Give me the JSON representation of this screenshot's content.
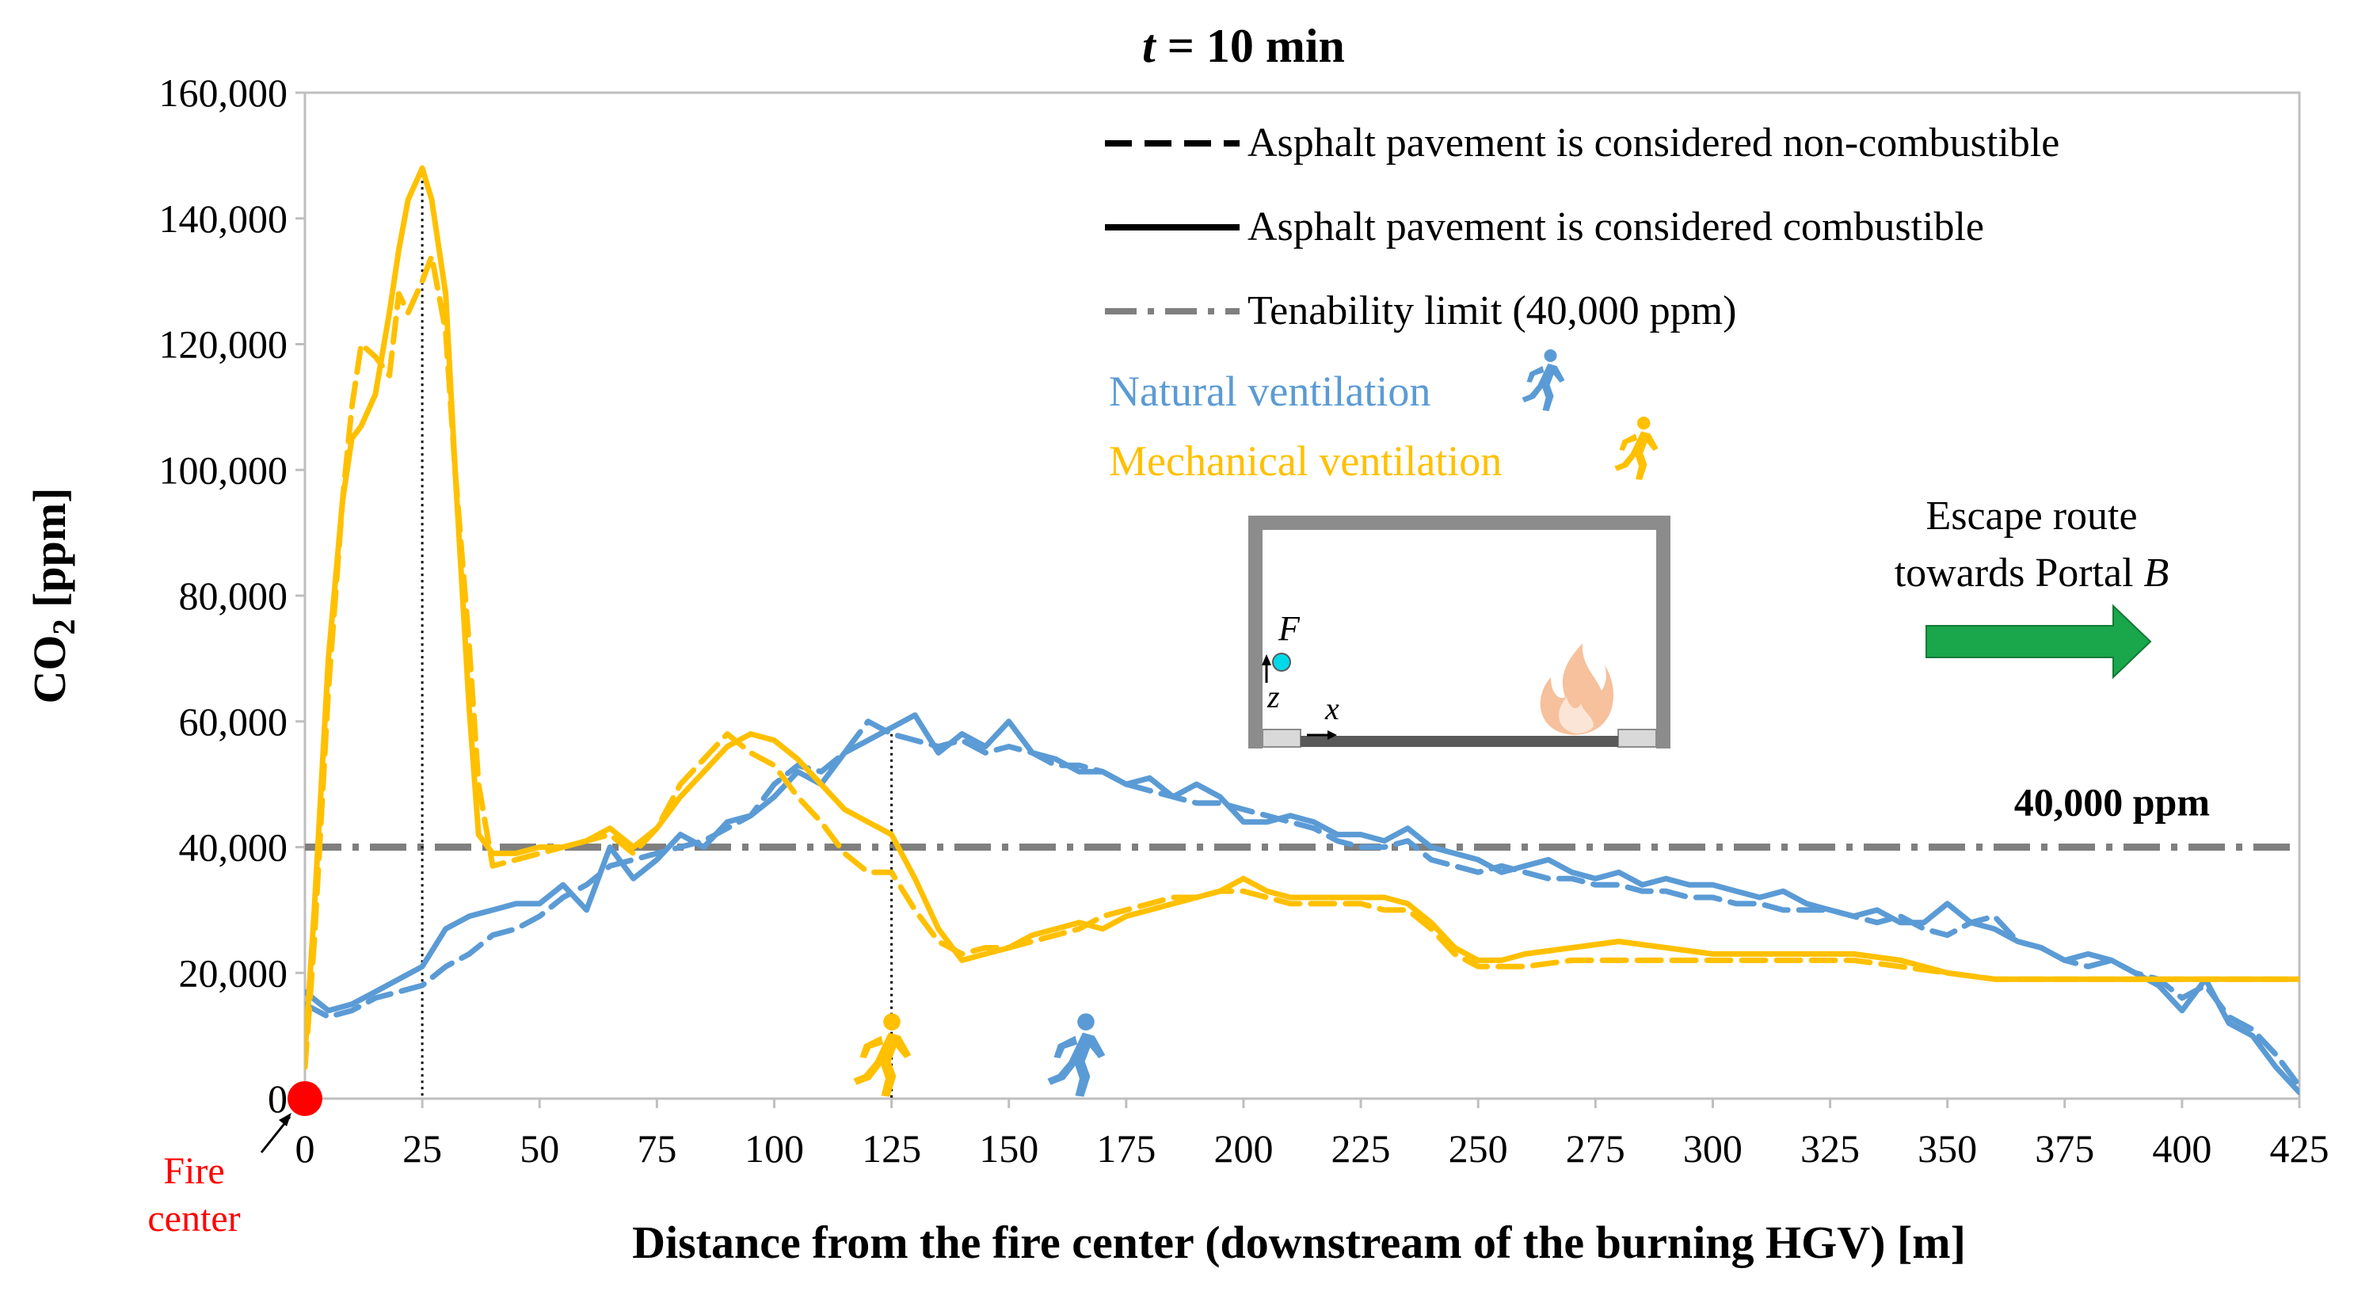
{
  "title_prefix": "t",
  "title_suffix": " = 10 min",
  "colors": {
    "natural": "#5b9bd5",
    "mechanical": "#ffc000",
    "tenability": "#7f7f7f",
    "fire": "#ff0000",
    "arrow": "#1aa64b",
    "tunnel": "#8c8c8c",
    "marker": "#00d9e8"
  },
  "chart_data": {
    "type": "line",
    "title": "t = 10 min",
    "xlabel": "Distance from the fire center (downstream of the burning HGV) [m]",
    "ylabel_main": "CO",
    "ylabel_sub": "2",
    "ylabel_suffix": " [ppm]",
    "xlim": [
      0,
      425
    ],
    "ylim": [
      0,
      160000
    ],
    "xticks": [
      0,
      25,
      50,
      75,
      100,
      125,
      150,
      175,
      200,
      225,
      250,
      275,
      300,
      325,
      350,
      375,
      400,
      425
    ],
    "yticks": [
      0,
      20000,
      40000,
      60000,
      80000,
      100000,
      120000,
      140000,
      160000
    ],
    "ytick_labels": [
      "0",
      "20,000",
      "40,000",
      "60,000",
      "80,000",
      "100,000",
      "120,000",
      "140,000",
      "160,000"
    ],
    "tenability_limit": 40000,
    "tenability_label": "40,000 ppm",
    "reference_lines": [
      25,
      125
    ],
    "series": [
      {
        "name": "Natural ventilation – combustible asphalt",
        "ventilation": "natural",
        "style": "solid",
        "x": [
          0,
          5,
          10,
          15,
          20,
          25,
          30,
          35,
          40,
          45,
          50,
          55,
          60,
          65,
          70,
          75,
          80,
          85,
          90,
          95,
          100,
          105,
          110,
          115,
          120,
          125,
          130,
          135,
          140,
          145,
          150,
          155,
          160,
          165,
          170,
          175,
          180,
          185,
          190,
          195,
          200,
          205,
          210,
          215,
          220,
          225,
          230,
          235,
          240,
          245,
          250,
          255,
          260,
          265,
          270,
          275,
          280,
          285,
          290,
          295,
          300,
          305,
          310,
          315,
          320,
          325,
          330,
          335,
          340,
          345,
          350,
          355,
          360,
          365,
          370,
          375,
          380,
          385,
          390,
          395,
          400,
          405,
          410,
          415,
          420,
          425
        ],
        "y": [
          17000,
          14000,
          15000,
          17000,
          19000,
          21000,
          27000,
          29000,
          30000,
          31000,
          31000,
          34000,
          30000,
          40000,
          35000,
          38000,
          42000,
          40000,
          44000,
          45000,
          48000,
          52000,
          50000,
          55000,
          57000,
          59000,
          61000,
          55000,
          58000,
          56000,
          60000,
          55000,
          54000,
          52000,
          52000,
          50000,
          51000,
          48000,
          50000,
          48000,
          44000,
          44000,
          45000,
          44000,
          42000,
          42000,
          41000,
          43000,
          40000,
          39000,
          38000,
          36000,
          37000,
          38000,
          36000,
          35000,
          36000,
          34000,
          35000,
          34000,
          34000,
          33000,
          32000,
          33000,
          31000,
          30000,
          29000,
          30000,
          28000,
          28000,
          31000,
          28000,
          27000,
          25000,
          24000,
          22000,
          23000,
          22000,
          20000,
          18000,
          14000,
          19000,
          12000,
          10000,
          5000,
          1000
        ]
      },
      {
        "name": "Natural ventilation – non-combustible asphalt",
        "ventilation": "natural",
        "style": "dashed",
        "x": [
          0,
          5,
          10,
          15,
          20,
          25,
          30,
          35,
          40,
          45,
          50,
          55,
          60,
          65,
          70,
          75,
          80,
          85,
          90,
          95,
          100,
          105,
          110,
          115,
          120,
          125,
          130,
          135,
          140,
          145,
          150,
          155,
          160,
          165,
          170,
          175,
          180,
          185,
          190,
          195,
          200,
          205,
          210,
          215,
          220,
          225,
          230,
          235,
          240,
          245,
          250,
          255,
          260,
          265,
          270,
          275,
          280,
          285,
          290,
          295,
          300,
          305,
          310,
          315,
          320,
          325,
          330,
          335,
          340,
          345,
          350,
          355,
          360,
          365,
          370,
          375,
          380,
          385,
          390,
          395,
          400,
          405,
          410,
          415,
          420,
          425
        ],
        "y": [
          15000,
          13000,
          14000,
          16000,
          17000,
          18000,
          21000,
          23000,
          26000,
          27000,
          29000,
          32000,
          34000,
          37000,
          38000,
          39000,
          40000,
          41000,
          43000,
          45000,
          50000,
          53000,
          52000,
          55000,
          60000,
          58000,
          57000,
          56000,
          57000,
          55000,
          56000,
          55000,
          53000,
          53000,
          52000,
          50000,
          49000,
          48000,
          47000,
          47000,
          46000,
          45000,
          44000,
          43000,
          41000,
          40000,
          40000,
          41000,
          38000,
          37000,
          36000,
          37000,
          36000,
          35000,
          35000,
          34000,
          34000,
          33000,
          33000,
          32000,
          32000,
          31000,
          31000,
          30000,
          30000,
          30000,
          29000,
          28000,
          29000,
          27000,
          26000,
          28000,
          29000,
          25000,
          24000,
          22000,
          21000,
          22000,
          20000,
          19000,
          16000,
          18000,
          13000,
          11000,
          7000,
          2000
        ]
      },
      {
        "name": "Mechanical ventilation – combustible asphalt",
        "ventilation": "mechanical",
        "style": "solid",
        "x": [
          0,
          2,
          5,
          8,
          10,
          12,
          15,
          18,
          20,
          22,
          25,
          27,
          30,
          32,
          35,
          37,
          40,
          45,
          50,
          55,
          60,
          65,
          70,
          75,
          80,
          85,
          90,
          95,
          100,
          105,
          110,
          115,
          120,
          125,
          130,
          135,
          140,
          145,
          150,
          155,
          160,
          165,
          170,
          175,
          180,
          185,
          190,
          195,
          200,
          205,
          210,
          215,
          220,
          225,
          230,
          235,
          240,
          245,
          250,
          255,
          260,
          270,
          280,
          290,
          300,
          310,
          320,
          330,
          340,
          350,
          360,
          370,
          380,
          390,
          400,
          410,
          420,
          425
        ],
        "y": [
          7000,
          30000,
          70000,
          95000,
          105000,
          107000,
          112000,
          125000,
          135000,
          143000,
          148000,
          143000,
          128000,
          100000,
          62000,
          42000,
          39000,
          39000,
          40000,
          40000,
          41000,
          43000,
          40000,
          43000,
          48000,
          52000,
          56000,
          58000,
          57000,
          54000,
          50000,
          46000,
          44000,
          42000,
          35000,
          27000,
          22000,
          23000,
          24000,
          26000,
          27000,
          28000,
          27000,
          29000,
          30000,
          31000,
          32000,
          33000,
          35000,
          33000,
          32000,
          32000,
          32000,
          32000,
          32000,
          31000,
          28000,
          24000,
          22000,
          22000,
          23000,
          24000,
          25000,
          24000,
          23000,
          23000,
          23000,
          23000,
          22000,
          20000,
          19000,
          19000,
          19000,
          19000,
          19000,
          19000,
          19000,
          19000
        ]
      },
      {
        "name": "Mechanical ventilation – non-combustible asphalt",
        "ventilation": "mechanical",
        "style": "dashed",
        "x": [
          0,
          2,
          5,
          8,
          10,
          12,
          15,
          18,
          20,
          22,
          25,
          27,
          30,
          32,
          35,
          37,
          40,
          45,
          50,
          55,
          60,
          65,
          70,
          75,
          80,
          85,
          90,
          95,
          100,
          105,
          110,
          115,
          120,
          125,
          130,
          135,
          140,
          145,
          150,
          155,
          160,
          165,
          170,
          175,
          180,
          185,
          190,
          195,
          200,
          205,
          210,
          215,
          220,
          225,
          230,
          235,
          240,
          245,
          250,
          255,
          260,
          270,
          280,
          290,
          300,
          310,
          320,
          330,
          340,
          350,
          360,
          370,
          380,
          390,
          400,
          410,
          420,
          425
        ],
        "y": [
          5000,
          25000,
          65000,
          95000,
          110000,
          120000,
          118000,
          115000,
          128000,
          125000,
          130000,
          134000,
          122000,
          100000,
          72000,
          50000,
          37000,
          38000,
          39000,
          40000,
          41000,
          42000,
          39000,
          43000,
          50000,
          54000,
          58000,
          55000,
          53000,
          48000,
          44000,
          39000,
          36000,
          36000,
          30000,
          25000,
          23000,
          24000,
          24000,
          25000,
          26000,
          27000,
          29000,
          30000,
          31000,
          32000,
          32000,
          33000,
          33000,
          32000,
          31000,
          31000,
          31000,
          31000,
          30000,
          30000,
          27000,
          23000,
          21000,
          21000,
          21000,
          22000,
          22000,
          22000,
          22000,
          22000,
          22000,
          22000,
          21000,
          20000,
          19000,
          19000,
          19000,
          19000,
          19000,
          19000,
          19000,
          19000
        ]
      }
    ]
  },
  "legend": {
    "dashed": "Asphalt pavement is considered non-combustible",
    "solid": "Asphalt pavement is considered combustible",
    "tenability": "Tenability limit (40,000 ppm)",
    "natural": "Natural ventilation",
    "mechanical": "Mechanical ventilation"
  },
  "escape": {
    "line1": "Escape route",
    "line2_prefix": "towards Portal ",
    "line2_italic": "B"
  },
  "fire_center": {
    "line1": "Fire",
    "line2": "center"
  },
  "inset": {
    "label_f": "F",
    "label_z": "z",
    "label_x": "x"
  },
  "icons": {
    "natural_person": "running-person-icon",
    "mechanical_person": "running-person-icon",
    "fire": "flame-icon",
    "escape_arrow": "right-arrow-icon"
  }
}
